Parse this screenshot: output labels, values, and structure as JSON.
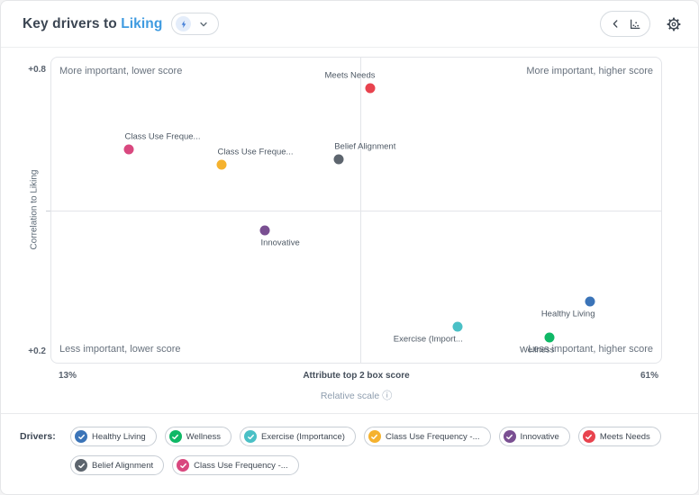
{
  "header": {
    "title_prefix": "Key drivers to",
    "metric": "Liking"
  },
  "icons": {
    "lightning": "lightning-bolt",
    "chevron_down": "chevron-down",
    "chevron_left": "chevron-left",
    "scatter_chart": "scatter-chart",
    "gear": "settings-gear",
    "info": "ⓘ",
    "check": "checkmark"
  },
  "colors": {
    "accent_blue": "#3F9BE0",
    "grid_line": "#E3E5E9"
  },
  "chart_data": {
    "type": "scatter",
    "title": "Key drivers to Liking",
    "xlabel": "Attribute top 2 box score",
    "ylabel": "Correlation to Liking",
    "x_axis": {
      "min": 13,
      "max": 61,
      "min_label": "13%",
      "max_label": "61%",
      "unit": "%"
    },
    "y_axis": {
      "min": 0.2,
      "max": 0.8,
      "min_label": "+0.2",
      "max_label": "+0.8"
    },
    "scale_note": "Relative scale",
    "quadrants": {
      "top_left": "More important, lower score",
      "top_right": "More important, higher score",
      "bottom_left": "Less important, lower score",
      "bottom_right": "Less important, higher score"
    },
    "quadrant_divider": {
      "x": 37.3,
      "y": 0.5
    },
    "legend_position": "bottom",
    "points": [
      {
        "label": "Meets Needs",
        "x": 38.1,
        "y": 0.74,
        "color": "#E8434E",
        "label_pos": "top-left"
      },
      {
        "label": "Class Use Freque...",
        "x": 19.1,
        "y": 0.62,
        "color": "#D9487F",
        "label_pos": "top-right"
      },
      {
        "label": "Class Use Freque...",
        "x": 26.4,
        "y": 0.59,
        "color": "#F5B22E",
        "label_pos": "top-right"
      },
      {
        "label": "Belief Alignment",
        "x": 35.6,
        "y": 0.6,
        "color": "#5D656E",
        "label_pos": "top-right"
      },
      {
        "label": "Innovative",
        "x": 29.8,
        "y": 0.46,
        "color": "#7A4F92",
        "label_pos": "bottom-right"
      },
      {
        "label": "Exercise (Import...",
        "x": 45.0,
        "y": 0.27,
        "color": "#4AC0C6",
        "label_pos": "bottom-left"
      },
      {
        "label": "Wellness",
        "x": 52.2,
        "y": 0.25,
        "color": "#0FB866",
        "label_pos": "bottom-left"
      },
      {
        "label": "Healthy Living",
        "x": 55.4,
        "y": 0.32,
        "color": "#3B74B8",
        "label_pos": "bottom-left"
      }
    ]
  },
  "drivers": {
    "label": "Drivers:",
    "items": [
      {
        "label": "Healthy Living",
        "color": "#3B74B8"
      },
      {
        "label": "Wellness",
        "color": "#0FB866"
      },
      {
        "label": "Exercise (Importance)",
        "color": "#4AC0C6"
      },
      {
        "label": "Class Use Frequency -...",
        "color": "#F5B22E"
      },
      {
        "label": "Innovative",
        "color": "#7A4F92"
      },
      {
        "label": "Meets Needs",
        "color": "#E8434E"
      },
      {
        "label": "Belief Alignment",
        "color": "#5D656E"
      },
      {
        "label": "Class Use Frequency -...",
        "color": "#D9487F"
      }
    ]
  }
}
